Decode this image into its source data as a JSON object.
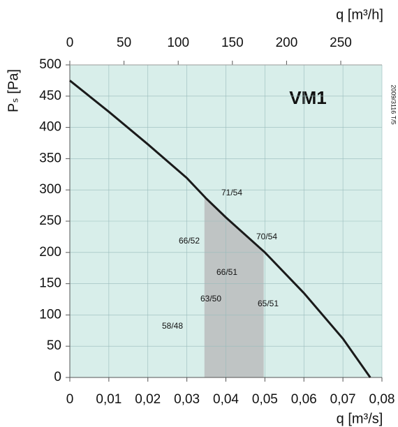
{
  "chart_data": {
    "type": "line",
    "title": "VM1",
    "code": "2009/3116 T/5",
    "xlabel": "q [m³/s]",
    "x2label": "q [m³/h]",
    "ylabel": "Pₛ [Pa]",
    "series": [
      {
        "name": "VM1",
        "color": "#1a1a1a",
        "x": [
          0,
          0.01,
          0.02,
          0.03,
          0.035,
          0.04,
          0.05,
          0.06,
          0.07,
          0.077
        ],
        "values": [
          475,
          425,
          373,
          319,
          286,
          256,
          200,
          135,
          62,
          0
        ]
      }
    ],
    "shaded_range": [
      0.0345,
      0.0497
    ],
    "shade_color": "#bfc4c4",
    "background": "#d8eeea",
    "grid": true,
    "xlim": [
      0,
      0.08
    ],
    "xticks": [
      0,
      {
        "value": 0.01,
        "label": "0,01"
      },
      {
        "value": 0.02,
        "label": "0,02"
      },
      {
        "value": 0.03,
        "label": "0,03"
      },
      {
        "value": 0.04,
        "label": "0,04"
      },
      {
        "value": 0.05,
        "label": "0,05"
      },
      {
        "value": 0.06,
        "label": "0,06"
      },
      {
        "value": 0.07,
        "label": "0,07"
      },
      {
        "value": 0.08,
        "label": "0,08"
      }
    ],
    "x2lim": [
      0,
      288
    ],
    "x2ticks": [
      0,
      50,
      100,
      150,
      200,
      250
    ],
    "ylim": [
      0,
      500
    ],
    "yticks": [
      0,
      50,
      100,
      150,
      200,
      250,
      300,
      350,
      400,
      450,
      500
    ],
    "annotations": [
      "71/54",
      "70/54",
      "66/52",
      "66/51",
      "63/50",
      "65/51",
      "58/48"
    ]
  }
}
